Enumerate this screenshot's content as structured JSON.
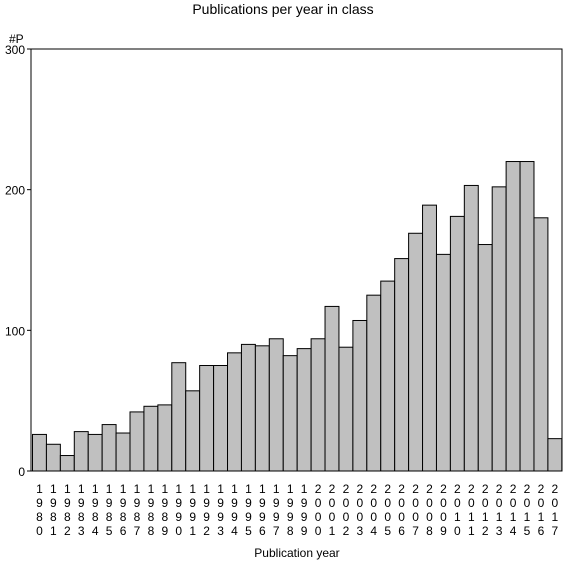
{
  "chart_data": {
    "type": "bar",
    "title": "Publications per year in class",
    "xlabel": "Publication year",
    "ylabel": "#P",
    "ylim": [
      0,
      300
    ],
    "yticks": [
      0,
      100,
      200,
      300
    ],
    "grid": false,
    "categories": [
      "1980",
      "1981",
      "1982",
      "1983",
      "1984",
      "1985",
      "1986",
      "1987",
      "1988",
      "1989",
      "1990",
      "1991",
      "1992",
      "1993",
      "1994",
      "1995",
      "1996",
      "1997",
      "1998",
      "1999",
      "2000",
      "2001",
      "2002",
      "2003",
      "2004",
      "2005",
      "2006",
      "2007",
      "2008",
      "2009",
      "2010",
      "2011",
      "2012",
      "2013",
      "2014",
      "2015",
      "2016",
      "2017"
    ],
    "values": [
      26,
      19,
      11,
      28,
      26,
      33,
      27,
      42,
      46,
      47,
      77,
      57,
      75,
      75,
      84,
      90,
      89,
      94,
      82,
      87,
      94,
      117,
      88,
      107,
      125,
      135,
      151,
      169,
      189,
      154,
      181,
      203,
      161,
      202,
      220,
      220,
      180,
      23
    ],
    "bar_color": "#c0c0c0",
    "edge_color": "#000000"
  }
}
